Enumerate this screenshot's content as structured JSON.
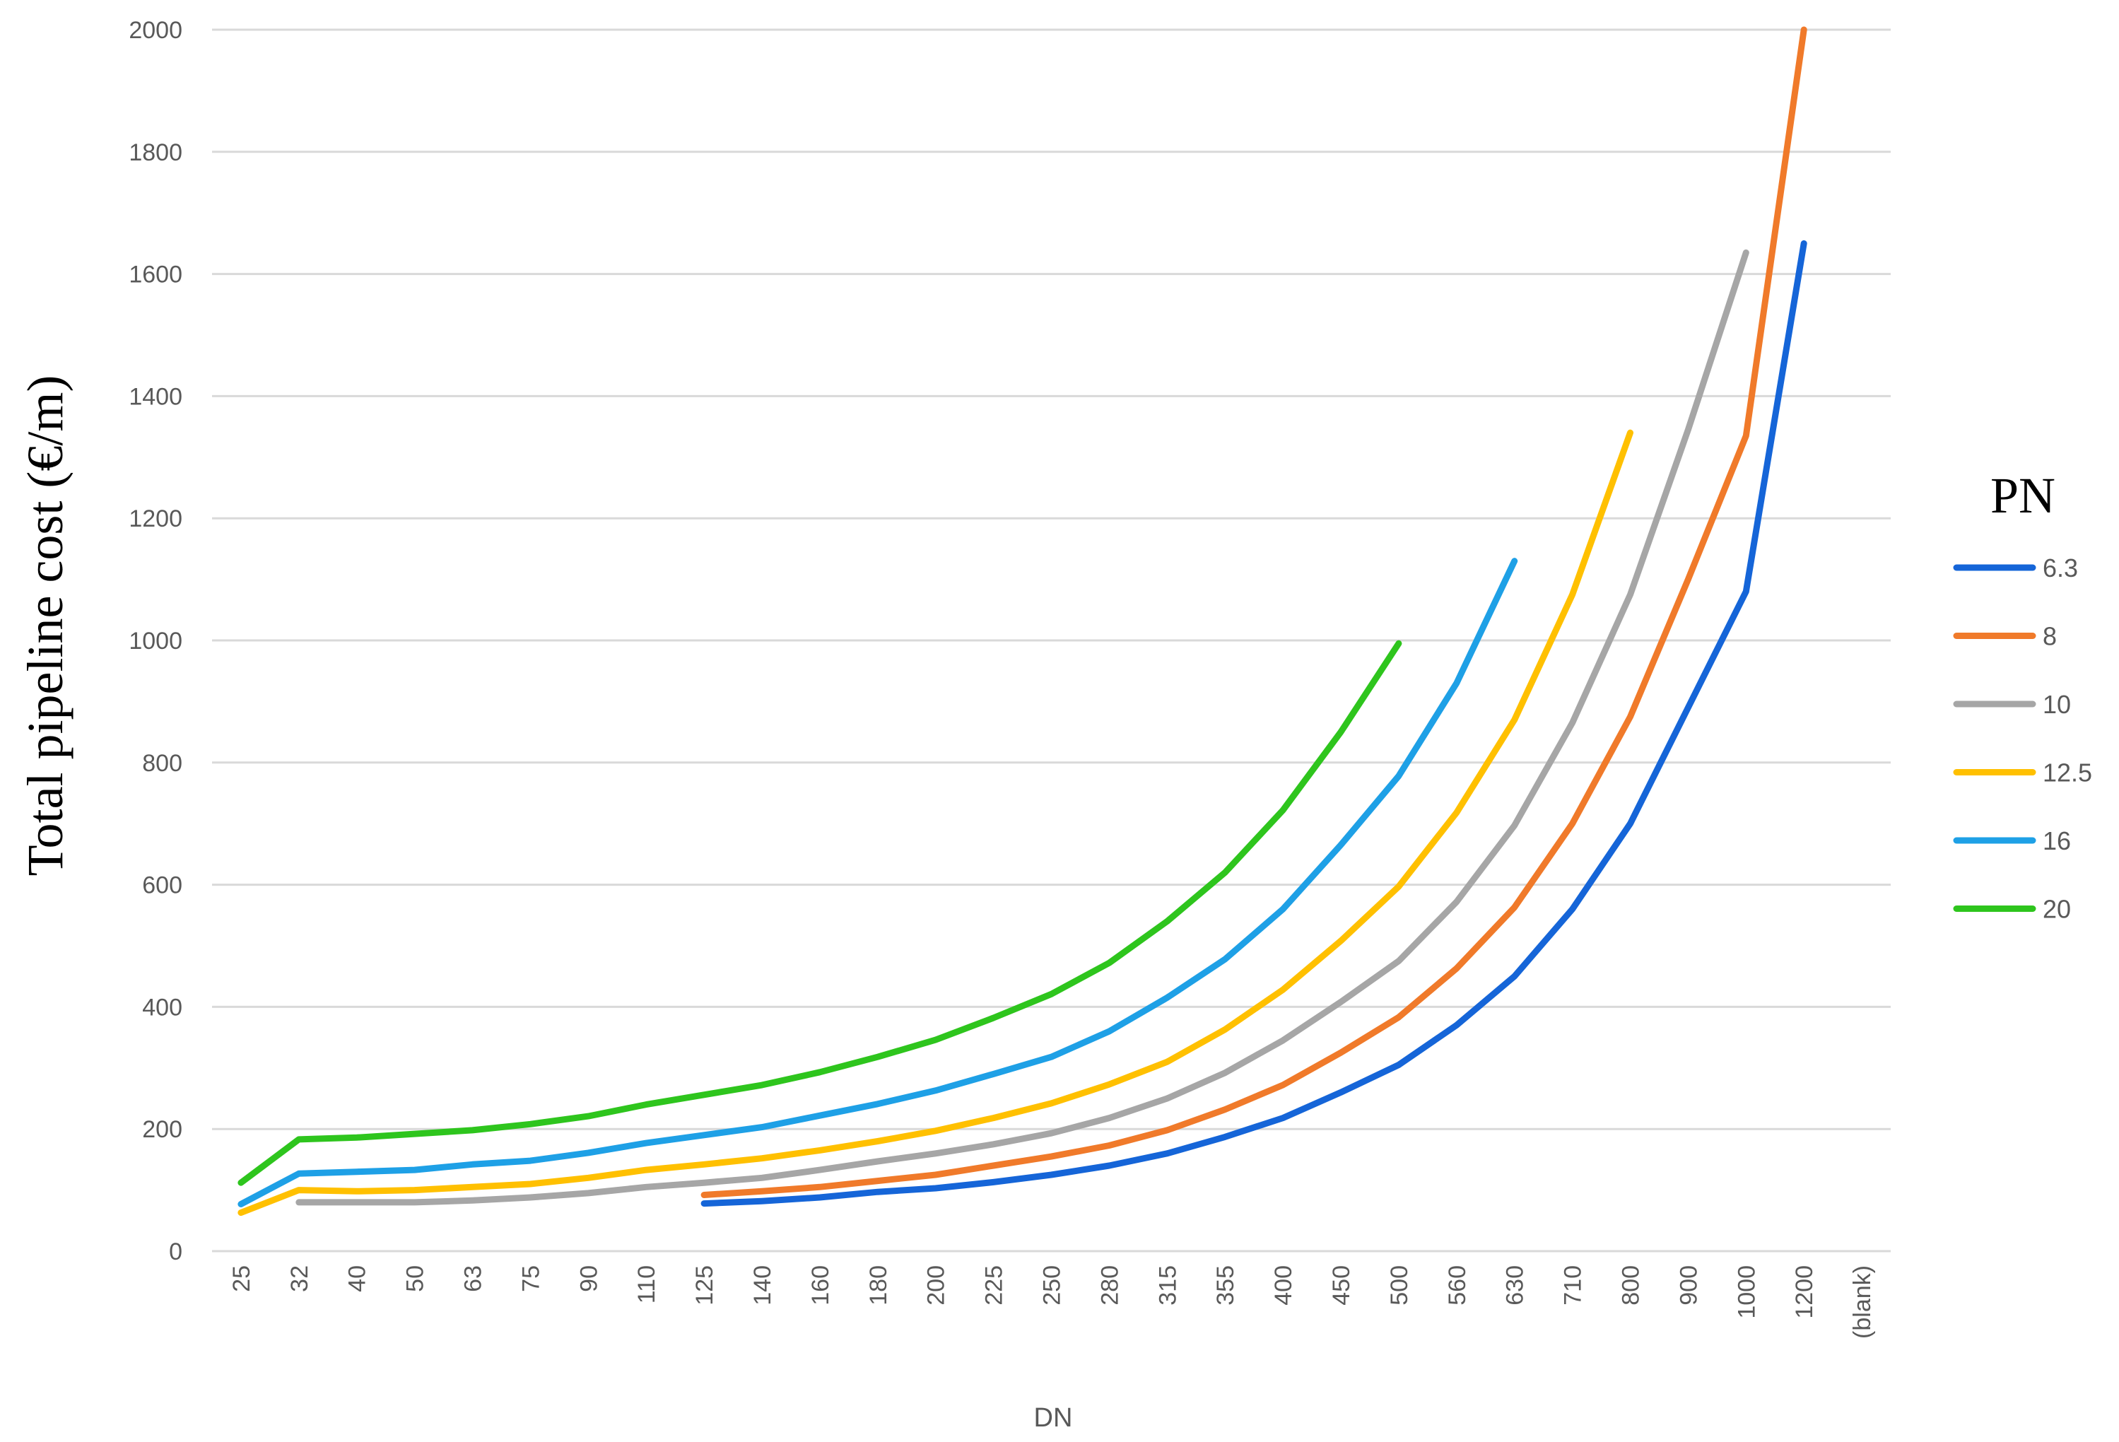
{
  "chart_data": {
    "type": "line",
    "ylabel": "Total pipeline cost (€/m)",
    "xlabel": "DN",
    "categories": [
      "25",
      "32",
      "40",
      "50",
      "63",
      "75",
      "90",
      "110",
      "125",
      "140",
      "160",
      "180",
      "200",
      "225",
      "250",
      "280",
      "315",
      "355",
      "400",
      "450",
      "500",
      "560",
      "630",
      "710",
      "800",
      "900",
      "1000",
      "1200",
      "(blank)"
    ],
    "yticks": [
      "0",
      "200",
      "400",
      "600",
      "800",
      "1000",
      "1200",
      "1400",
      "1600",
      "1800",
      "2000"
    ],
    "ylim": [
      0,
      2000
    ],
    "grid": true,
    "legend": {
      "title": "PN",
      "placement": "right"
    },
    "series": [
      {
        "name": "6.3",
        "color": "#1565d8",
        "values": [
          null,
          null,
          null,
          null,
          null,
          null,
          null,
          null,
          78,
          82,
          88,
          97,
          103,
          113,
          125,
          140,
          160,
          187,
          218,
          260,
          305,
          370,
          450,
          560,
          700,
          890,
          1080,
          1650,
          null
        ]
      },
      {
        "name": "8",
        "color": "#f07a2a",
        "values": [
          null,
          null,
          null,
          null,
          null,
          null,
          null,
          null,
          92,
          98,
          105,
          115,
          125,
          140,
          155,
          173,
          198,
          232,
          272,
          325,
          383,
          463,
          563,
          700,
          875,
          1100,
          1335,
          2000,
          null
        ]
      },
      {
        "name": "10",
        "color": "#a6a6a6",
        "values": [
          null,
          80,
          80,
          80,
          83,
          88,
          95,
          105,
          112,
          120,
          133,
          147,
          160,
          175,
          193,
          218,
          250,
          292,
          345,
          408,
          475,
          572,
          697,
          865,
          1075,
          1345,
          1635,
          null,
          null
        ]
      },
      {
        "name": "12.5",
        "color": "#ffc000",
        "values": [
          63,
          100,
          98,
          100,
          105,
          110,
          120,
          133,
          142,
          152,
          165,
          180,
          197,
          218,
          242,
          273,
          310,
          363,
          428,
          508,
          597,
          718,
          870,
          1075,
          1340,
          null,
          null,
          null,
          null
        ]
      },
      {
        "name": "16",
        "color": "#1ea0e6",
        "values": [
          77,
          127,
          130,
          133,
          142,
          148,
          161,
          177,
          190,
          203,
          222,
          241,
          263,
          290,
          318,
          360,
          415,
          478,
          560,
          665,
          778,
          930,
          1130,
          null,
          null,
          null,
          null,
          null,
          null
        ]
      },
      {
        "name": "20",
        "color": "#2ec51d",
        "values": [
          112,
          183,
          186,
          192,
          198,
          208,
          221,
          240,
          256,
          272,
          293,
          318,
          346,
          382,
          421,
          472,
          540,
          620,
          722,
          850,
          995,
          null,
          null,
          null,
          null,
          null,
          null,
          null,
          null
        ]
      }
    ]
  }
}
